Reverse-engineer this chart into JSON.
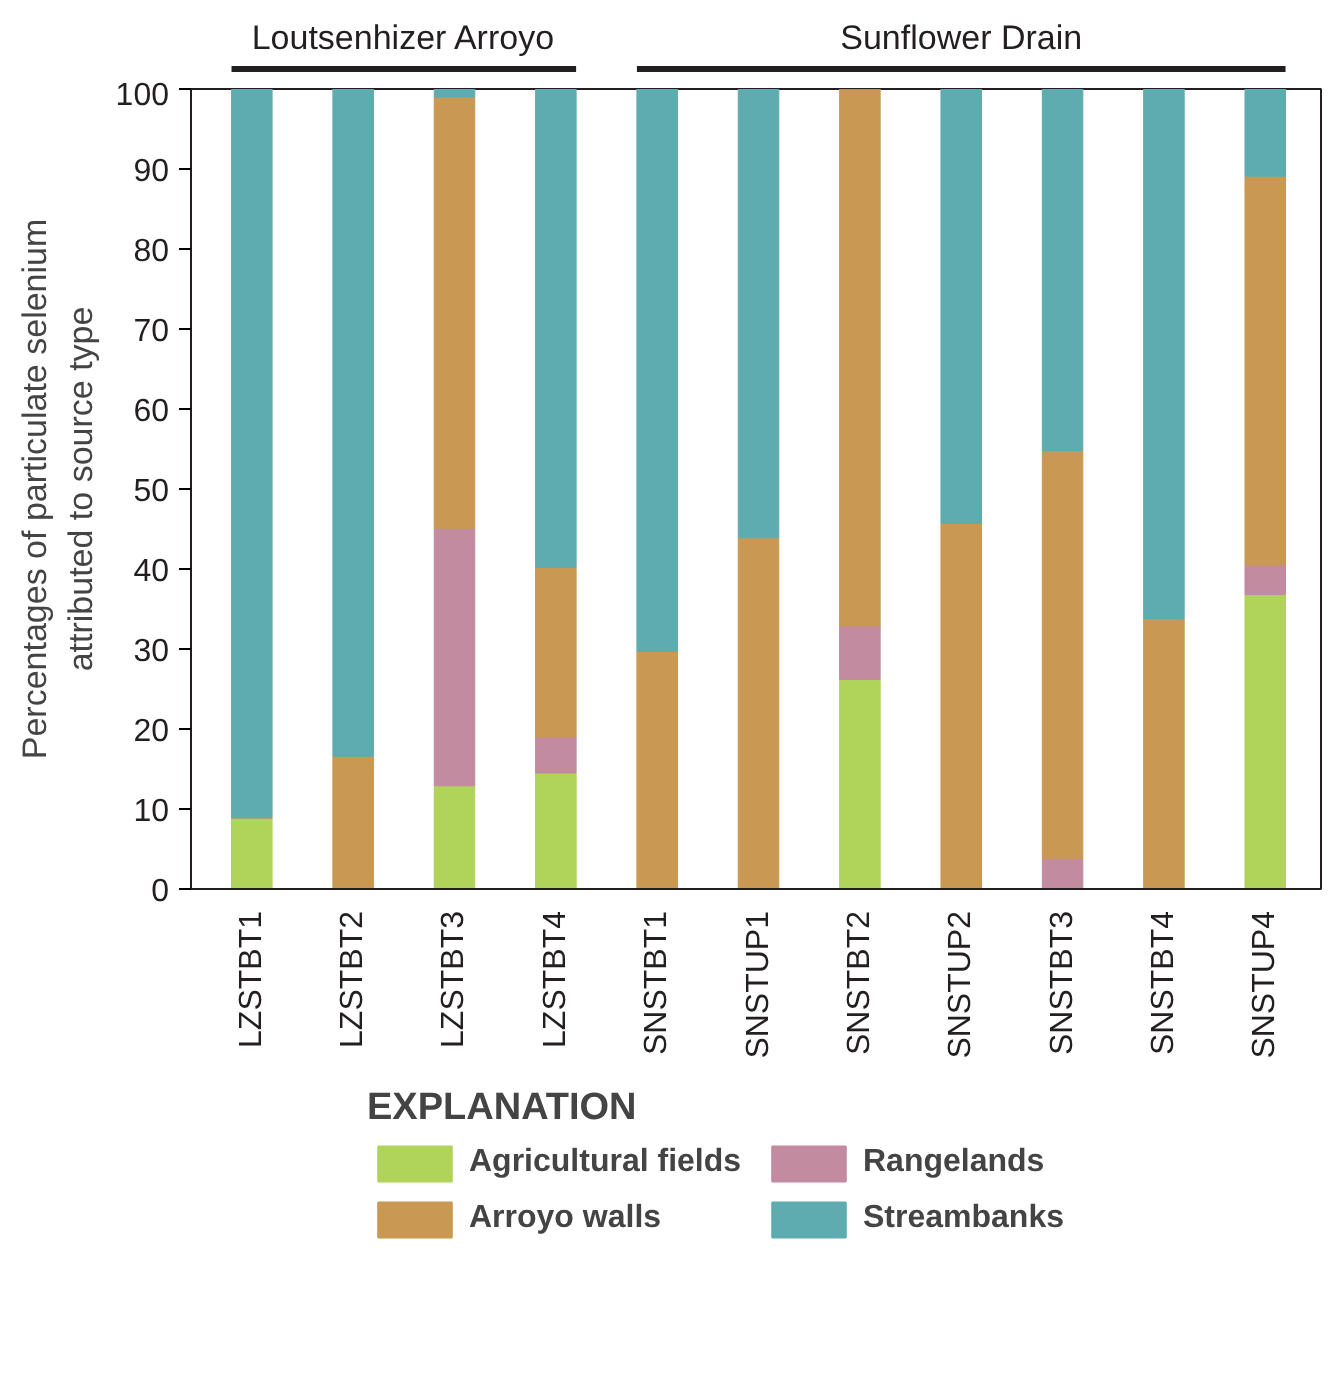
{
  "chart_data": {
    "type": "bar",
    "stacked": true,
    "ylabel": "Percentages of particulate selenium\nattributed to source type",
    "legend_title": "EXPLANATION",
    "legend": "bottom",
    "grid": false,
    "categories": [
      "LZSTBT1",
      "LZSTBT2",
      "LZSTBT3",
      "LZSTBT4",
      "SNSTBT1",
      "SNSTUP1",
      "SNSTBT2",
      "SNSTUP2",
      "SNSTBT3",
      "SNSTBT4",
      "SNSTUP4"
    ],
    "ylim": [
      0,
      100
    ],
    "yticks": [
      0,
      10,
      20,
      30,
      40,
      50,
      60,
      70,
      80,
      90,
      100
    ],
    "annotations": [
      "Loutsenhizer Arroyo",
      "Sunflower Drain"
    ],
    "series": [
      {
        "name": "Agricultural fields",
        "color": "#b0d35a",
        "values": [
          8.9,
          0,
          12.9,
          14.5,
          0,
          0,
          26.2,
          0,
          0,
          0,
          36.8
        ]
      },
      {
        "name": "Rangelands",
        "color": "#c28ba0",
        "values": [
          0,
          0,
          32.2,
          4.5,
          0,
          0,
          6.7,
          0,
          3.8,
          0,
          3.7
        ]
      },
      {
        "name": "Arroyo walls",
        "color": "#c99852",
        "values": [
          0,
          16.6,
          53.9,
          21.2,
          29.7,
          43.9,
          67.1,
          45.7,
          51.0,
          33.8,
          48.6
        ]
      },
      {
        "name": "Streambanks",
        "color": "#5eacb0",
        "values": [
          91.1,
          83.4,
          1.0,
          59.8,
          70.3,
          56.1,
          0,
          54.3,
          45.2,
          66.2,
          10.9
        ]
      }
    ]
  }
}
